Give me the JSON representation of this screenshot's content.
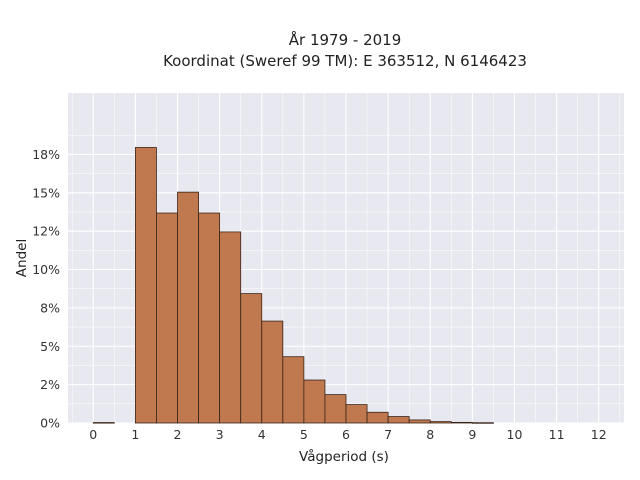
{
  "chart_data": {
    "type": "bar",
    "title_line1": "År 1979 - 2019",
    "title_line2": "Koordinat (Sweref 99 TM): E 363512, N 6146423",
    "xlabel": "Vågperiod (s)",
    "ylabel": "Andel",
    "xlim": [
      -0.6,
      12.6
    ],
    "ylim": [
      0,
      0.215
    ],
    "x_ticks": [
      0,
      1,
      2,
      3,
      4,
      5,
      6,
      7,
      8,
      9,
      10,
      11,
      12
    ],
    "x_tick_labels": [
      "0",
      "1",
      "2",
      "3",
      "4",
      "5",
      "6",
      "7",
      "8",
      "9",
      "10",
      "11",
      "12"
    ],
    "y_ticks": [
      0,
      0.025,
      0.05,
      0.075,
      0.1,
      0.125,
      0.15,
      0.175
    ],
    "y_tick_labels": [
      "0%",
      "2%",
      "5%",
      "8%",
      "10%",
      "12%",
      "15%",
      "18%"
    ],
    "bin_width": 0.5,
    "bins": [
      {
        "x0": 0.0,
        "x1": 0.5,
        "value": 0.0003
      },
      {
        "x0": 1.0,
        "x1": 1.5,
        "value": 0.1795
      },
      {
        "x0": 1.5,
        "x1": 2.0,
        "value": 0.1368
      },
      {
        "x0": 2.0,
        "x1": 2.5,
        "value": 0.1504
      },
      {
        "x0": 2.5,
        "x1": 3.0,
        "value": 0.1368
      },
      {
        "x0": 3.0,
        "x1": 3.5,
        "value": 0.1245
      },
      {
        "x0": 3.5,
        "x1": 4.0,
        "value": 0.0843
      },
      {
        "x0": 4.0,
        "x1": 4.5,
        "value": 0.0664
      },
      {
        "x0": 4.5,
        "x1": 5.0,
        "value": 0.0432
      },
      {
        "x0": 5.0,
        "x1": 5.5,
        "value": 0.028
      },
      {
        "x0": 5.5,
        "x1": 6.0,
        "value": 0.0185
      },
      {
        "x0": 6.0,
        "x1": 6.5,
        "value": 0.012
      },
      {
        "x0": 6.5,
        "x1": 7.0,
        "value": 0.007
      },
      {
        "x0": 7.0,
        "x1": 7.5,
        "value": 0.0042
      },
      {
        "x0": 7.5,
        "x1": 8.0,
        "value": 0.002
      },
      {
        "x0": 8.0,
        "x1": 8.5,
        "value": 0.0009
      },
      {
        "x0": 8.5,
        "x1": 9.0,
        "value": 0.0004
      },
      {
        "x0": 9.0,
        "x1": 9.5,
        "value": 0.0002
      }
    ],
    "grid": true,
    "colors": {
      "bar_fill": "#c0784e",
      "bar_stroke": "#3a2418",
      "plot_bg": "#e8e8f0",
      "grid": "#ffffff"
    }
  }
}
